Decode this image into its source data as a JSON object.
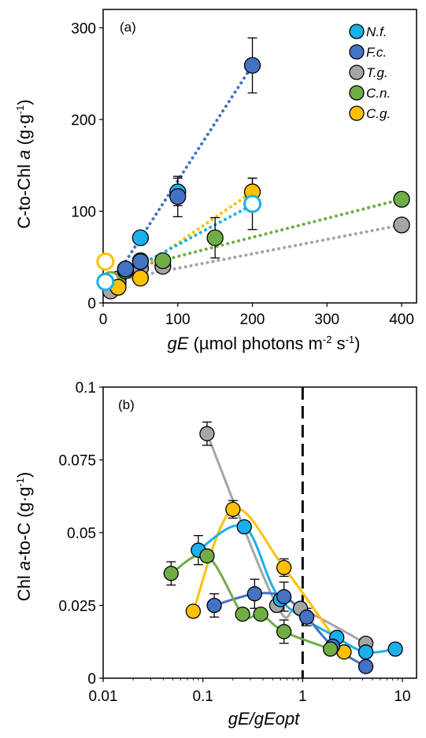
{
  "colors": {
    "N.f.": "#1ab0ec",
    "F.c.": "#4472c4",
    "T.g.": "#a5a5a5",
    "C.n.": "#70ad47",
    "C.g.": "#ffc000"
  },
  "chart_data": [
    {
      "type": "scatter",
      "panel_label": "(a)",
      "ylabel_pre": "C-to-Chl ",
      "ylabel_it": "a",
      "ylabel_post": " (g·g",
      "ylabel_sup": "-1",
      "ylabel_end": ")",
      "xlabel_it": "gE",
      "xlabel_rest": " (µmol photons m",
      "xlabel_sup1": "-2",
      "xlabel_mid": " s",
      "xlabel_sup2": "-1",
      "xlabel_end": ")",
      "xlim": [
        0,
        420
      ],
      "ylim": [
        0,
        320
      ],
      "xticks": [
        0,
        100,
        200,
        300,
        400
      ],
      "yticks": [
        0,
        100,
        200,
        300
      ],
      "legend_position": "top-right",
      "legend": [
        "N.f.",
        "F.c.",
        "T.g.",
        "C.n.",
        "C.g."
      ],
      "series": [
        {
          "name": "T.g.",
          "points": [
            [
              10,
              13,
              0
            ],
            [
              20,
              26,
              0
            ],
            [
              50,
              38,
              0
            ],
            [
              80,
              40,
              0
            ],
            [
              400,
              85,
              0
            ]
          ],
          "trend": [
            [
              0,
              22
            ],
            [
              400,
              85
            ]
          ],
          "hollow": []
        },
        {
          "name": "C.n.",
          "points": [
            [
              20,
              22,
              0
            ],
            [
              30,
              35,
              0
            ],
            [
              50,
              46,
              0
            ],
            [
              80,
              46,
              0
            ],
            [
              150,
              71,
              22
            ],
            [
              400,
              113,
              0
            ]
          ],
          "trend": [
            [
              0,
              30
            ],
            [
              400,
              113
            ]
          ],
          "hollow": [
            [
              10,
              25
            ]
          ]
        },
        {
          "name": "C.g.",
          "points": [
            [
              20,
              17,
              0
            ],
            [
              50,
              27,
              0
            ],
            [
              200,
              121,
              15
            ]
          ],
          "trend": [
            [
              10,
              15
            ],
            [
              200,
              121
            ]
          ],
          "hollow": [
            [
              3,
              45
            ]
          ]
        },
        {
          "name": "N.f.",
          "points": [
            [
              30,
              37,
              0
            ],
            [
              50,
              71,
              0
            ],
            [
              100,
              121,
              15
            ]
          ],
          "trend": [
            [
              5,
              22
            ],
            [
              200,
              107
            ]
          ],
          "hollow": [
            [
              3,
              23
            ],
            [
              200,
              108,
              28
            ]
          ]
        },
        {
          "name": "F.c.",
          "points": [
            [
              30,
              37,
              0
            ],
            [
              50,
              45,
              0
            ],
            [
              100,
              116,
              22
            ],
            [
              200,
              259,
              30
            ]
          ],
          "trend": [
            [
              10,
              20
            ],
            [
              200,
              259
            ]
          ],
          "hollow": []
        }
      ]
    },
    {
      "type": "line",
      "panel_label": "(b)",
      "ylabel_pre": "Chl ",
      "ylabel_it": "a",
      "ylabel_post": "-to-C  (g·g",
      "ylabel_sup": "-1",
      "ylabel_end": ")",
      "xlabel": "gE/gEopt",
      "x_scale": "log",
      "xlim": [
        0.01,
        10
      ],
      "ylim": [
        0,
        0.1
      ],
      "xticks": [
        "0.01",
        "0.1",
        "1",
        "10"
      ],
      "yticks": [
        "0",
        "0.025",
        "0.05",
        "0.075",
        "0.1"
      ],
      "reference_line_x": 1,
      "series": [
        {
          "name": "T.g.",
          "points": [
            [
              0.11,
              0.084,
              0.004
            ],
            [
              0.55,
              0.025,
              0
            ],
            [
              0.95,
              0.024,
              0
            ],
            [
              4.3,
              0.012,
              0
            ]
          ]
        },
        {
          "name": "C.g.",
          "points": [
            [
              0.08,
              0.023,
              0
            ],
            [
              0.2,
              0.058,
              0.003
            ],
            [
              0.65,
              0.038,
              0.003
            ],
            [
              2.6,
              0.009,
              0
            ]
          ]
        },
        {
          "name": "N.f.",
          "points": [
            [
              0.09,
              0.044,
              0.005
            ],
            [
              0.26,
              0.052,
              0
            ],
            [
              0.6,
              0.027,
              0
            ],
            [
              2.2,
              0.014,
              0
            ],
            [
              4.3,
              0.009,
              0.002
            ],
            [
              8.5,
              0.01,
              0.002
            ]
          ]
        },
        {
          "name": "F.c.",
          "points": [
            [
              0.13,
              0.025,
              0.004
            ],
            [
              0.33,
              0.029,
              0.005
            ],
            [
              0.65,
              0.028,
              0.005
            ],
            [
              1.1,
              0.021,
              0.003
            ],
            [
              2.0,
              0.011,
              0
            ],
            [
              4.3,
              0.004,
              0
            ]
          ]
        },
        {
          "name": "C.n.",
          "points": [
            [
              0.048,
              0.036,
              0.004
            ],
            [
              0.11,
              0.042,
              0
            ],
            [
              0.25,
              0.022,
              0
            ],
            [
              0.38,
              0.022,
              0
            ],
            [
              0.65,
              0.016,
              0.004
            ],
            [
              1.9,
              0.01,
              0
            ]
          ]
        }
      ]
    }
  ]
}
